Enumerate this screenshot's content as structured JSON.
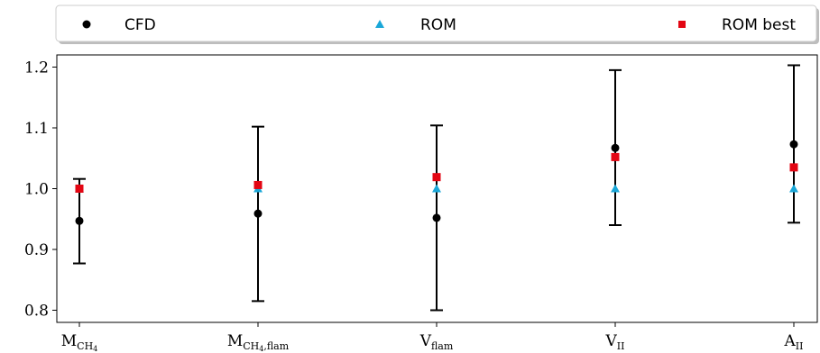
{
  "chart_data": {
    "type": "scatter",
    "legend_placement": "top (above plot)",
    "grid": false,
    "ylim": [
      0.78,
      1.22
    ],
    "yticks": [
      "0.8",
      "0.9",
      "1.0",
      "1.1",
      "1.2"
    ],
    "categories": [
      {
        "main": "M",
        "sub": "CH",
        "sub2": "4",
        "sub3": ""
      },
      {
        "main": "M",
        "sub": "CH",
        "sub2": "4",
        "sub3": ",flam"
      },
      {
        "main": "V",
        "sub": "flam",
        "sub2": "",
        "sub3": ""
      },
      {
        "main": "V",
        "sub": "II",
        "sub2": "",
        "sub3": ""
      },
      {
        "main": "A",
        "sub": "II",
        "sub2": "",
        "sub3": ""
      }
    ],
    "series": [
      {
        "name": "CFD",
        "marker": "circle",
        "color": "#000000",
        "values": [
          0.947,
          0.959,
          0.952,
          1.067,
          1.073
        ],
        "error_low": [
          0.877,
          0.815,
          0.8,
          0.94,
          0.944
        ],
        "error_high": [
          1.016,
          1.102,
          1.104,
          1.195,
          1.203
        ]
      },
      {
        "name": "ROM",
        "marker": "triangle",
        "color": "#1aa7d8",
        "values": [
          1.0,
          1.0,
          1.0,
          1.0,
          1.0
        ]
      },
      {
        "name": "ROM best",
        "marker": "square",
        "color": "#e30613",
        "values": [
          1.0,
          1.006,
          1.019,
          1.052,
          1.035
        ]
      }
    ]
  }
}
